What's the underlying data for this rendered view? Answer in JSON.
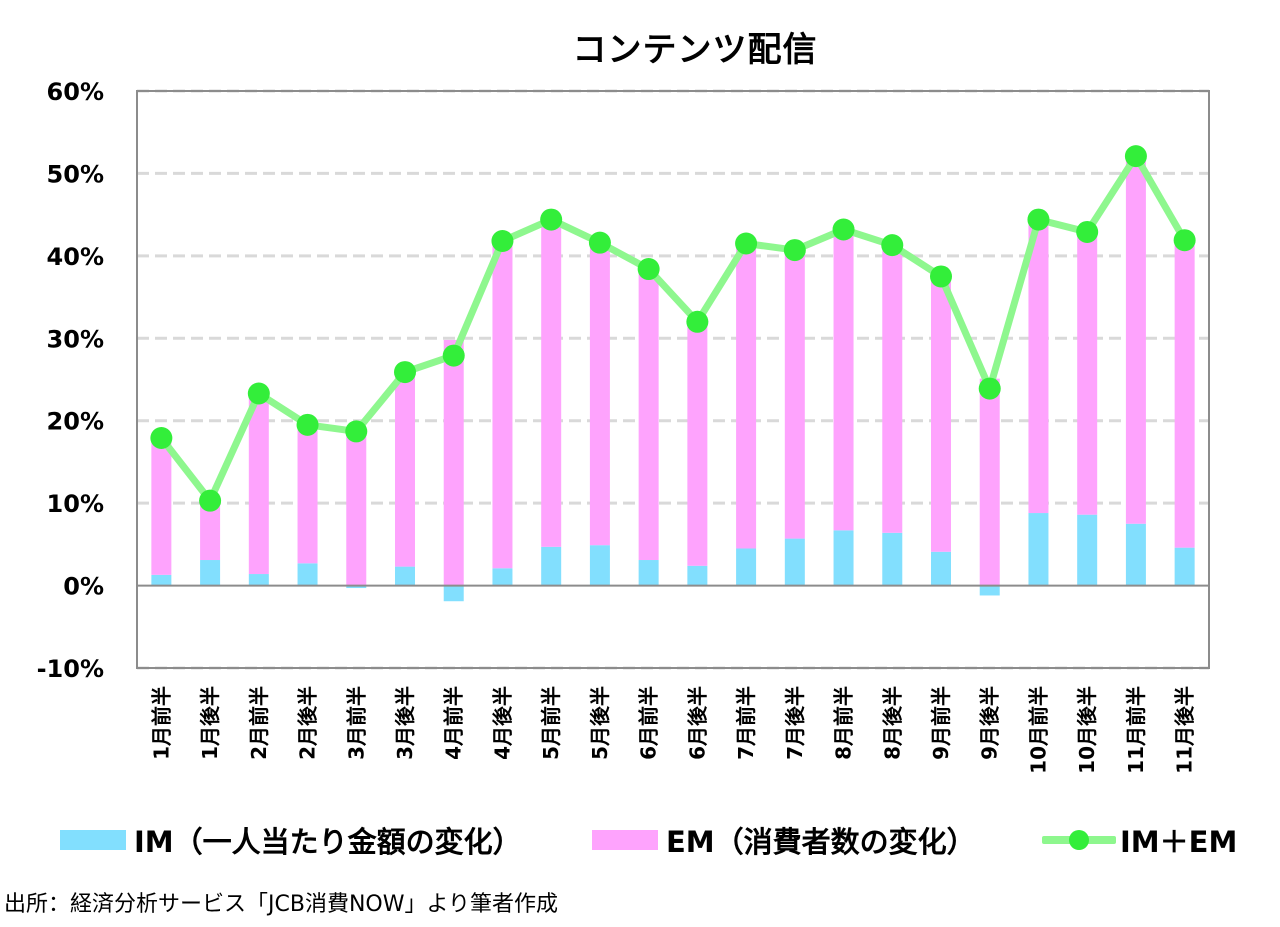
{
  "chart_data": {
    "type": "bar",
    "subtype": "stacked-bar-with-line",
    "title": "コンテンツ配信",
    "xlabel": "",
    "ylabel": "",
    "ylim": [
      -10,
      60
    ],
    "y_ticks": [
      60,
      50,
      40,
      30,
      20,
      10,
      0,
      -10
    ],
    "y_tick_labels": [
      "60%",
      "50%",
      "40%",
      "30%",
      "20%",
      "10%",
      "0%",
      "-10%"
    ],
    "y_unit": "%",
    "grid": "horizontal dashed",
    "legend_position": "bottom",
    "categories": [
      "1月前半",
      "1月後半",
      "2月前半",
      "2月後半",
      "3月前半",
      "3月後半",
      "4月前半",
      "4月後半",
      "5月前半",
      "5月後半",
      "6月前半",
      "6月後半",
      "7月前半",
      "7月後半",
      "8月前半",
      "8月後半",
      "9月前半",
      "9月後半",
      "10月前半",
      "10月後半",
      "11月前半",
      "11月後半"
    ],
    "series": [
      {
        "name": "IM（一人当たり金額の変化）",
        "kind": "bar",
        "color": "#82dffe",
        "values": [
          1.3,
          3.1,
          1.4,
          2.7,
          -0.3,
          2.3,
          -1.9,
          2.1,
          4.7,
          4.9,
          3.1,
          2.4,
          4.5,
          5.7,
          6.7,
          6.4,
          4.1,
          -1.2,
          8.8,
          8.6,
          7.5,
          4.6
        ]
      },
      {
        "name": "EM（消費者数の変化）",
        "kind": "bar",
        "color": "#fea3fd",
        "values": [
          16.6,
          7.2,
          21.9,
          16.8,
          19.0,
          23.6,
          29.8,
          39.7,
          39.7,
          36.7,
          35.3,
          29.6,
          37.0,
          35.0,
          36.5,
          34.9,
          33.4,
          25.1,
          35.6,
          34.3,
          44.6,
          37.3
        ]
      },
      {
        "name": "IM＋EM",
        "kind": "line",
        "color": "#8ef78e",
        "marker_color": "#33ee3a",
        "values": [
          17.9,
          10.3,
          23.3,
          19.5,
          18.7,
          25.9,
          27.9,
          41.8,
          44.4,
          41.6,
          38.4,
          32.0,
          41.5,
          40.7,
          43.2,
          41.3,
          37.5,
          23.9,
          44.4,
          42.9,
          52.1,
          41.9
        ]
      }
    ]
  },
  "legend": {
    "im_label": "IM（一人当たり金額の変化）",
    "em_label": "EM（消費者数の変化）",
    "total_label": "IM＋EM"
  },
  "source_note": "出所：経済分析サービス「JCB消費NOW」より筆者作成"
}
